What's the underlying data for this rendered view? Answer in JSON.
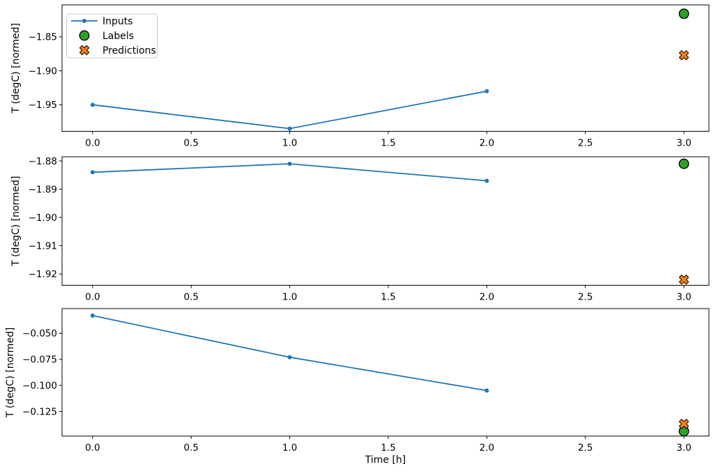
{
  "figure": {
    "background": "#ffffff",
    "text_color": "#000000",
    "spine_color": "#000000"
  },
  "legend": {
    "position": "upper-left-of-first-subplot",
    "frame_color": "#cccccc",
    "items": [
      {
        "label": "Inputs",
        "marker": "line-with-dot",
        "color": "#1f77b4"
      },
      {
        "label": "Labels",
        "marker": "circle",
        "color": "#2ca02c"
      },
      {
        "label": "Predictions",
        "marker": "X",
        "color": "#ff7f0e"
      }
    ]
  },
  "chart_data": [
    {
      "type": "line",
      "title": "",
      "xlabel": "",
      "ylabel": "T (degC) [normed]",
      "xlim": [
        -0.155,
        3.127
      ],
      "ylim": [
        -1.989,
        -1.803
      ],
      "grid": false,
      "xticks": {
        "values": [
          0.0,
          0.5,
          1.0,
          1.5,
          2.0,
          2.5,
          3.0
        ],
        "labels": [
          "0.0",
          "0.5",
          "1.0",
          "1.5",
          "2.0",
          "2.5",
          "3.0"
        ]
      },
      "yticks": {
        "values": [
          -1.85,
          -1.9,
          -1.95
        ],
        "labels": [
          "−1.85",
          "−1.90",
          "−1.95"
        ]
      },
      "series": [
        {
          "name": "Inputs",
          "type": "line",
          "marker": "dot",
          "color": "#1f77b4",
          "x": [
            0,
            1,
            2
          ],
          "y": [
            -1.95,
            -1.985,
            -1.93
          ]
        },
        {
          "name": "Labels",
          "type": "scatter",
          "marker": "circle",
          "color": "#2ca02c",
          "x": [
            3
          ],
          "y": [
            -1.816
          ]
        },
        {
          "name": "Predictions",
          "type": "scatter",
          "marker": "X",
          "color": "#ff7f0e",
          "x": [
            3
          ],
          "y": [
            -1.877
          ]
        }
      ]
    },
    {
      "type": "line",
      "title": "",
      "xlabel": "",
      "ylabel": "T (degC) [normed]",
      "xlim": [
        -0.155,
        3.127
      ],
      "ylim": [
        -1.924,
        -1.8785
      ],
      "grid": false,
      "xticks": {
        "values": [
          0.0,
          0.5,
          1.0,
          1.5,
          2.0,
          2.5,
          3.0
        ],
        "labels": [
          "0.0",
          "0.5",
          "1.0",
          "1.5",
          "2.0",
          "2.5",
          "3.0"
        ]
      },
      "yticks": {
        "values": [
          -1.88,
          -1.89,
          -1.9,
          -1.91,
          -1.92
        ],
        "labels": [
          "−1.88",
          "−1.89",
          "−1.90",
          "−1.91",
          "−1.92"
        ]
      },
      "series": [
        {
          "name": "Inputs",
          "type": "line",
          "marker": "dot",
          "color": "#1f77b4",
          "x": [
            0,
            1,
            2
          ],
          "y": [
            -1.884,
            -1.881,
            -1.887
          ]
        },
        {
          "name": "Labels",
          "type": "scatter",
          "marker": "circle",
          "color": "#2ca02c",
          "x": [
            3
          ],
          "y": [
            -1.881
          ]
        },
        {
          "name": "Predictions",
          "type": "scatter",
          "marker": "X",
          "color": "#ff7f0e",
          "x": [
            3
          ],
          "y": [
            -1.922
          ]
        }
      ]
    },
    {
      "type": "line",
      "title": "",
      "xlabel": "Time [h]",
      "ylabel": "T (degC) [normed]",
      "xlim": [
        -0.155,
        3.127
      ],
      "ylim": [
        -0.1487,
        -0.0263
      ],
      "grid": false,
      "xticks": {
        "values": [
          0.0,
          0.5,
          1.0,
          1.5,
          2.0,
          2.5,
          3.0
        ],
        "labels": [
          "0.0",
          "0.5",
          "1.0",
          "1.5",
          "2.0",
          "2.5",
          "3.0"
        ]
      },
      "yticks": {
        "values": [
          -0.05,
          -0.075,
          -0.1,
          -0.125
        ],
        "labels": [
          "−0.050",
          "−0.075",
          "−0.100",
          "−0.125"
        ]
      },
      "series": [
        {
          "name": "Inputs",
          "type": "line",
          "marker": "dot",
          "color": "#1f77b4",
          "x": [
            0,
            1,
            2
          ],
          "y": [
            -0.033,
            -0.073,
            -0.105
          ]
        },
        {
          "name": "Labels",
          "type": "scatter",
          "marker": "circle",
          "color": "#2ca02c",
          "x": [
            3
          ],
          "y": [
            -0.144
          ]
        },
        {
          "name": "Predictions",
          "type": "scatter",
          "marker": "X",
          "color": "#ff7f0e",
          "x": [
            3
          ],
          "y": [
            -0.137
          ]
        }
      ]
    }
  ]
}
